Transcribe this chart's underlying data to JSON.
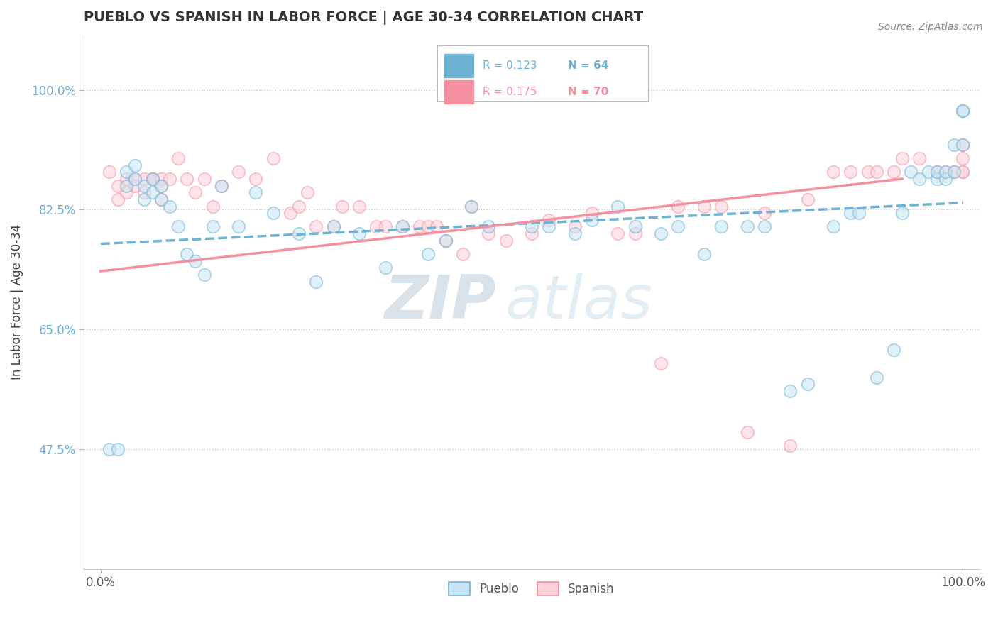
{
  "title": "PUEBLO VS SPANISH IN LABOR FORCE | AGE 30-34 CORRELATION CHART",
  "source_text": "Source: ZipAtlas.com",
  "ylabel": "In Labor Force | Age 30-34",
  "xmin": 0.0,
  "xmax": 1.0,
  "ymin": 0.3,
  "ymax": 1.08,
  "yticks": [
    0.475,
    0.65,
    0.825,
    1.0
  ],
  "ytick_labels": [
    "47.5%",
    "65.0%",
    "82.5%",
    "100.0%"
  ],
  "xtick_labels": [
    "0.0%",
    "100.0%"
  ],
  "legend_blue_R": "R = 0.123",
  "legend_blue_N": "N = 64",
  "legend_pink_R": "R = 0.175",
  "legend_pink_N": "N = 70",
  "blue_color": "#6eb2d4",
  "pink_color": "#f490a0",
  "watermark_zip": "ZIP",
  "watermark_atlas": "atlas",
  "blue_scatter_x": [
    0.01,
    0.02,
    0.03,
    0.03,
    0.04,
    0.04,
    0.05,
    0.05,
    0.06,
    0.06,
    0.07,
    0.07,
    0.08,
    0.09,
    0.1,
    0.11,
    0.12,
    0.13,
    0.14,
    0.16,
    0.18,
    0.2,
    0.23,
    0.25,
    0.27,
    0.3,
    0.33,
    0.35,
    0.38,
    0.4,
    0.43,
    0.45,
    0.5,
    0.52,
    0.55,
    0.57,
    0.6,
    0.62,
    0.65,
    0.67,
    0.7,
    0.72,
    0.75,
    0.77,
    0.8,
    0.82,
    0.85,
    0.87,
    0.88,
    0.9,
    0.92,
    0.93,
    0.94,
    0.95,
    0.96,
    0.97,
    0.97,
    0.98,
    0.98,
    0.99,
    0.99,
    1.0,
    1.0,
    1.0
  ],
  "blue_scatter_y": [
    0.475,
    0.475,
    0.88,
    0.86,
    0.89,
    0.87,
    0.86,
    0.84,
    0.87,
    0.85,
    0.86,
    0.84,
    0.83,
    0.8,
    0.76,
    0.75,
    0.73,
    0.8,
    0.86,
    0.8,
    0.85,
    0.82,
    0.79,
    0.72,
    0.8,
    0.79,
    0.74,
    0.8,
    0.76,
    0.78,
    0.83,
    0.8,
    0.8,
    0.8,
    0.79,
    0.81,
    0.83,
    0.8,
    0.79,
    0.8,
    0.76,
    0.8,
    0.8,
    0.8,
    0.56,
    0.57,
    0.8,
    0.82,
    0.82,
    0.58,
    0.62,
    0.82,
    0.88,
    0.87,
    0.88,
    0.87,
    0.88,
    0.87,
    0.88,
    0.92,
    0.88,
    0.92,
    0.97,
    0.97
  ],
  "pink_scatter_x": [
    0.01,
    0.02,
    0.02,
    0.03,
    0.03,
    0.04,
    0.04,
    0.05,
    0.05,
    0.06,
    0.06,
    0.07,
    0.07,
    0.07,
    0.08,
    0.09,
    0.1,
    0.11,
    0.12,
    0.13,
    0.14,
    0.16,
    0.18,
    0.2,
    0.22,
    0.23,
    0.24,
    0.25,
    0.27,
    0.28,
    0.3,
    0.32,
    0.33,
    0.35,
    0.37,
    0.38,
    0.39,
    0.4,
    0.42,
    0.43,
    0.45,
    0.47,
    0.5,
    0.52,
    0.55,
    0.57,
    0.6,
    0.62,
    0.65,
    0.67,
    0.7,
    0.72,
    0.75,
    0.77,
    0.8,
    0.82,
    0.85,
    0.87,
    0.89,
    0.9,
    0.92,
    0.93,
    0.95,
    0.97,
    0.98,
    0.99,
    1.0,
    1.0,
    1.0,
    1.0
  ],
  "pink_scatter_y": [
    0.88,
    0.86,
    0.84,
    0.87,
    0.85,
    0.87,
    0.86,
    0.87,
    0.85,
    0.87,
    0.87,
    0.87,
    0.86,
    0.84,
    0.87,
    0.9,
    0.87,
    0.85,
    0.87,
    0.83,
    0.86,
    0.88,
    0.87,
    0.9,
    0.82,
    0.83,
    0.85,
    0.8,
    0.8,
    0.83,
    0.83,
    0.8,
    0.8,
    0.8,
    0.8,
    0.8,
    0.8,
    0.78,
    0.76,
    0.83,
    0.79,
    0.78,
    0.79,
    0.81,
    0.8,
    0.82,
    0.79,
    0.79,
    0.6,
    0.83,
    0.83,
    0.83,
    0.5,
    0.82,
    0.48,
    0.84,
    0.88,
    0.88,
    0.88,
    0.88,
    0.88,
    0.9,
    0.9,
    0.88,
    0.88,
    0.88,
    0.9,
    0.88,
    0.88,
    0.92
  ],
  "blue_line_x0": 0.0,
  "blue_line_y0": 0.775,
  "blue_line_x1": 1.0,
  "blue_line_y1": 0.835,
  "pink_line_x0": 0.0,
  "pink_line_y0": 0.735,
  "pink_line_x1": 0.93,
  "pink_line_y1": 0.87
}
